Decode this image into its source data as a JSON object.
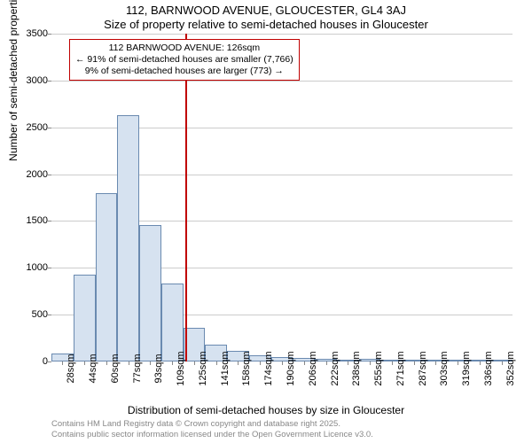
{
  "titles": {
    "line1": "112, BARNWOOD AVENUE, GLOUCESTER, GL4 3AJ",
    "line2": "Size of property relative to semi-detached houses in Gloucester"
  },
  "chart": {
    "type": "histogram",
    "ylabel": "Number of semi-detached properties",
    "xlabel": "Distribution of semi-detached houses by size in Gloucester",
    "ylim": [
      0,
      3500
    ],
    "ytick_step": 500,
    "yticks": [
      0,
      500,
      1000,
      1500,
      2000,
      2500,
      3000,
      3500
    ],
    "bar_fill": "#d6e2f0",
    "bar_stroke": "#6a8ab0",
    "grid_color": "#cccccc",
    "background": "#ffffff",
    "x_categories": [
      "28sqm",
      "44sqm",
      "60sqm",
      "77sqm",
      "93sqm",
      "109sqm",
      "125sqm",
      "141sqm",
      "158sqm",
      "174sqm",
      "190sqm",
      "206sqm",
      "222sqm",
      "238sqm",
      "255sqm",
      "271sqm",
      "287sqm",
      "303sqm",
      "319sqm",
      "336sqm",
      "352sqm"
    ],
    "values": [
      90,
      930,
      1800,
      2630,
      1460,
      830,
      360,
      180,
      110,
      70,
      50,
      40,
      25,
      20,
      30,
      15,
      10,
      8,
      5,
      5,
      3
    ],
    "reference_line": {
      "position_index": 6,
      "color": "#c00000"
    },
    "annotation": {
      "border_color": "#c00000",
      "bg_color": "#ffffff",
      "lines": [
        "112 BARNWOOD AVENUE: 126sqm",
        "← 91% of semi-detached houses are smaller (7,766)",
        "9% of semi-detached houses are larger (773) →"
      ],
      "fontsize": 10.5
    }
  },
  "attribution": {
    "line1": "Contains HM Land Registry data © Crown copyright and database right 2025.",
    "line2": "Contains public sector information licensed under the Open Government Licence v3.0."
  }
}
